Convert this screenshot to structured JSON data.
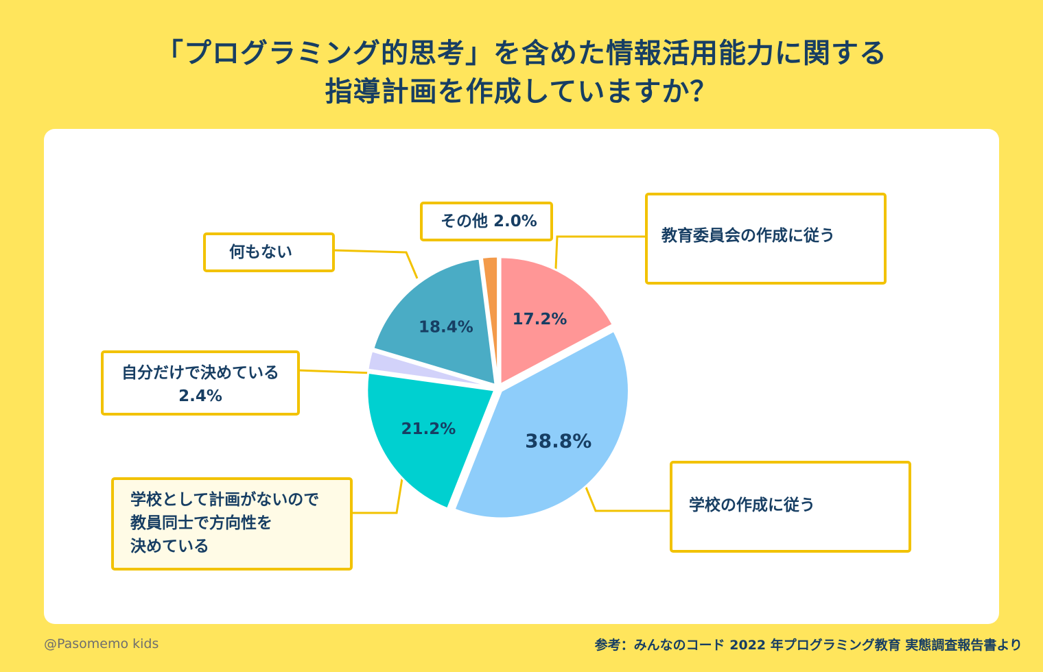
{
  "title": {
    "line1": "「プログラミング的思考」を含めた情報活用能力に関する",
    "line2": "指導計画を作成していますか？"
  },
  "labels": {
    "kyouiku": "教育委員会の作成に従う",
    "gakkou": "学校の作成に従う",
    "jibun_line1": "自分だけで決めている",
    "jibun_line2": "2.4%",
    "dousi_line1": "学校として計画がないので",
    "dousi_line2": "教員同士で方向性を",
    "dousi_line3": "決めている",
    "nanimo": "何もない",
    "sonota": "その他 2.0%"
  },
  "footer": {
    "left": "@Pasomemo kids",
    "right": "参考：みんなのコード 2022 年プログラミング教育 実態調査報告書より"
  },
  "chart_data": {
    "type": "pie",
    "title": "「プログラミング的思考」を含めた情報活用能力に関する指導計画を作成していますか？",
    "slices": [
      {
        "label": "教育委員会の作成に従う",
        "value": 17.2,
        "value_label": "17.2%",
        "color": "#FF9696"
      },
      {
        "label": "学校の作成に従う",
        "value": 38.8,
        "value_label": "38.8%",
        "color": "#8ECDFA"
      },
      {
        "label": "学校として計画がないので教員同士で方向性を決めている",
        "value": 21.2,
        "value_label": "21.2%",
        "color": "#00D0D0"
      },
      {
        "label": "自分だけで決めている",
        "value": 2.4,
        "value_label": "2.4%",
        "color": "#D2D2FA"
      },
      {
        "label": "何もない",
        "value": 18.4,
        "value_label": "18.4%",
        "color": "#4AACC5"
      },
      {
        "label": "その他",
        "value": 2.0,
        "value_label": "2.0%",
        "color": "#F39A4A"
      }
    ],
    "start": "12 o'clock",
    "direction": "clockwise",
    "inside_labels_for": [
      "17.2%",
      "38.8%",
      "21.2%",
      "18.4%"
    ],
    "colors": {
      "label_text": "#173E63",
      "connector": "#F2C200",
      "background": "#FFE55C"
    }
  }
}
